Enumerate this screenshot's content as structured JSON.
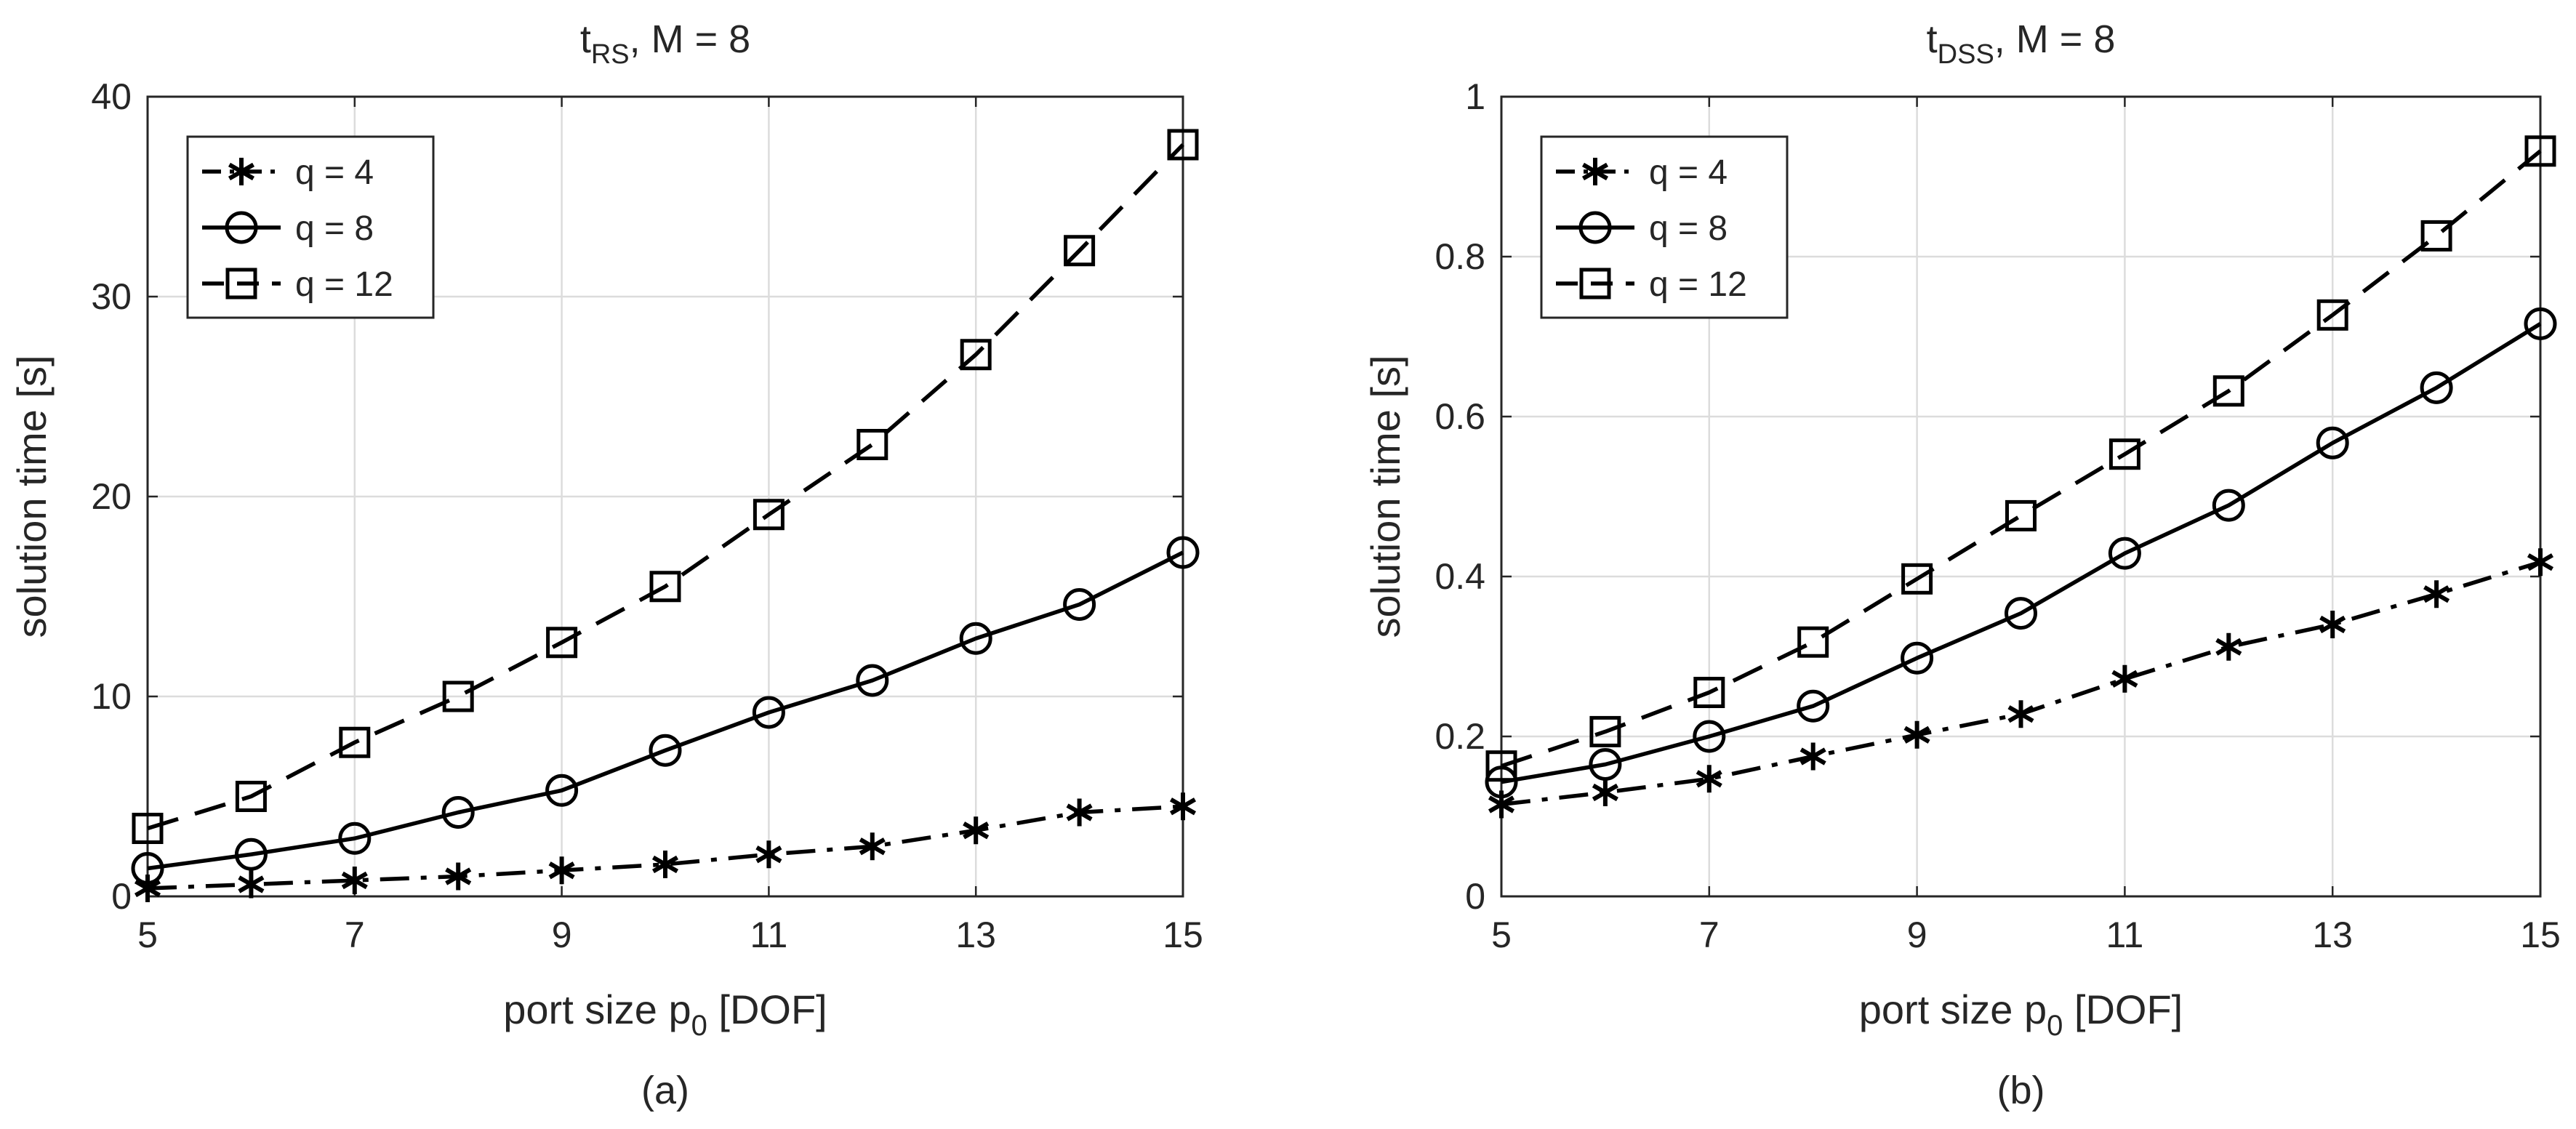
{
  "chart_data": [
    {
      "type": "line",
      "title_main": "t",
      "title_sub": "RS",
      "title_rest": ", M = 8",
      "xlabel_main": "port size p",
      "xlabel_sub": "0",
      "xlabel_rest": " [DOF]",
      "ylabel": "solution time [s]",
      "caption": "(a)",
      "xlim": [
        5,
        15
      ],
      "ylim": [
        0,
        40
      ],
      "xticks": [
        5,
        7,
        9,
        11,
        13,
        15
      ],
      "yticks": [
        0,
        10,
        20,
        30,
        40
      ],
      "ytick_labels": [
        "0",
        "10",
        "20",
        "30",
        "40"
      ],
      "grid": true,
      "legend_position": "top-left",
      "x": [
        5,
        6,
        7,
        8,
        9,
        10,
        11,
        12,
        13,
        14,
        15
      ],
      "series": [
        {
          "name": "q =  4",
          "marker": "asterisk",
          "linestyle": "dashdot",
          "values": [
            0.4,
            0.6,
            0.8,
            1.0,
            1.3,
            1.6,
            2.1,
            2.5,
            3.3,
            4.2,
            4.5
          ]
        },
        {
          "name": "q =  8",
          "marker": "circle",
          "linestyle": "solid",
          "values": [
            1.4,
            2.1,
            2.9,
            4.2,
            5.3,
            7.3,
            9.2,
            10.8,
            12.9,
            14.6,
            17.2
          ]
        },
        {
          "name": "q = 12",
          "marker": "square",
          "linestyle": "dashed",
          "values": [
            3.4,
            5.0,
            7.7,
            10.0,
            12.7,
            15.5,
            19.1,
            22.6,
            27.1,
            32.3,
            37.6
          ]
        }
      ]
    },
    {
      "type": "line",
      "title_main": "t",
      "title_sub": "DSS",
      "title_rest": ", M = 8",
      "xlabel_main": "port size p",
      "xlabel_sub": "0",
      "xlabel_rest": " [DOF]",
      "ylabel": "solution time [s]",
      "caption": "(b)",
      "xlim": [
        5,
        15
      ],
      "ylim": [
        0,
        1
      ],
      "xticks": [
        5,
        7,
        9,
        11,
        13,
        15
      ],
      "yticks": [
        0,
        0.2,
        0.4,
        0.6,
        0.8,
        1
      ],
      "ytick_labels": [
        "0",
        "0.2",
        "0.4",
        "0.6",
        "0.8",
        "1"
      ],
      "grid": true,
      "legend_position": "top-left",
      "x": [
        5,
        6,
        7,
        8,
        9,
        10,
        11,
        12,
        13,
        14,
        15
      ],
      "series": [
        {
          "name": "q =  4",
          "marker": "asterisk",
          "linestyle": "dashdot",
          "values": [
            0.115,
            0.13,
            0.147,
            0.175,
            0.202,
            0.228,
            0.272,
            0.312,
            0.34,
            0.378,
            0.418
          ]
        },
        {
          "name": "q =  8",
          "marker": "circle",
          "linestyle": "solid",
          "values": [
            0.143,
            0.165,
            0.2,
            0.238,
            0.298,
            0.354,
            0.429,
            0.489,
            0.567,
            0.636,
            0.716
          ]
        },
        {
          "name": "q = 12",
          "marker": "square",
          "linestyle": "dashed",
          "values": [
            0.163,
            0.206,
            0.255,
            0.318,
            0.397,
            0.476,
            0.553,
            0.632,
            0.727,
            0.826,
            0.932
          ]
        }
      ]
    }
  ]
}
